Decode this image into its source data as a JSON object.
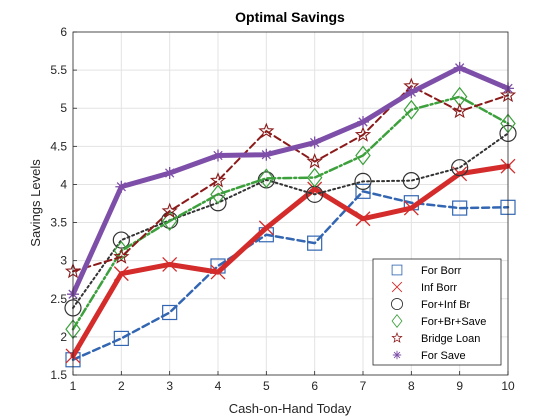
{
  "chart_data": {
    "type": "line",
    "title": "Optimal Savings",
    "xlabel": "Cash-on-Hand Today",
    "ylabel": "Savings Levels",
    "xlim": [
      1,
      10
    ],
    "ylim": [
      1.5,
      6
    ],
    "xticks": [
      1,
      2,
      3,
      4,
      5,
      6,
      7,
      8,
      9,
      10
    ],
    "yticks": [
      1.5,
      2,
      2.5,
      3,
      3.5,
      4,
      4.5,
      5,
      5.5,
      6
    ],
    "grid": true,
    "legend_position": "bottom-right",
    "x": [
      1,
      2,
      3,
      4,
      5,
      6,
      7,
      8,
      9,
      10
    ],
    "series": [
      {
        "name": "For Borr",
        "color": "#3366B2",
        "dash": "dashed",
        "marker": "square",
        "width": 2.5,
        "values": [
          1.7,
          1.98,
          2.32,
          2.93,
          3.34,
          3.23,
          3.91,
          3.76,
          3.69,
          3.7
        ]
      },
      {
        "name": "Inf Borr",
        "color": "#D42B2B",
        "dash": "solid",
        "marker": "x",
        "width": 5,
        "values": [
          1.75,
          2.83,
          2.95,
          2.85,
          3.43,
          3.94,
          3.55,
          3.69,
          4.14,
          4.24
        ]
      },
      {
        "name": "For+Inf Br",
        "color": "#333333",
        "dash": "dotted",
        "marker": "circle",
        "width": 2,
        "values": [
          2.38,
          3.27,
          3.53,
          3.76,
          4.06,
          3.87,
          4.04,
          4.05,
          4.22,
          4.67
        ]
      },
      {
        "name": "For+Br+Save",
        "color": "#3CA03C",
        "dash": "dashdot",
        "marker": "diamond",
        "width": 2.5,
        "values": [
          2.1,
          3.13,
          3.52,
          3.87,
          4.08,
          4.09,
          4.38,
          4.98,
          5.15,
          4.8
        ]
      },
      {
        "name": "Bridge Loan",
        "color": "#8B1A1A",
        "dash": "dashed",
        "marker": "star",
        "width": 2,
        "values": [
          2.86,
          3.05,
          3.65,
          4.05,
          4.7,
          4.3,
          4.65,
          5.29,
          4.96,
          5.17
        ]
      },
      {
        "name": "For Save",
        "color": "#7E4FA8",
        "dash": "solid",
        "marker": "asterisk",
        "width": 5,
        "values": [
          2.56,
          3.97,
          4.15,
          4.38,
          4.39,
          4.55,
          4.82,
          5.21,
          5.53,
          5.26
        ]
      }
    ]
  }
}
